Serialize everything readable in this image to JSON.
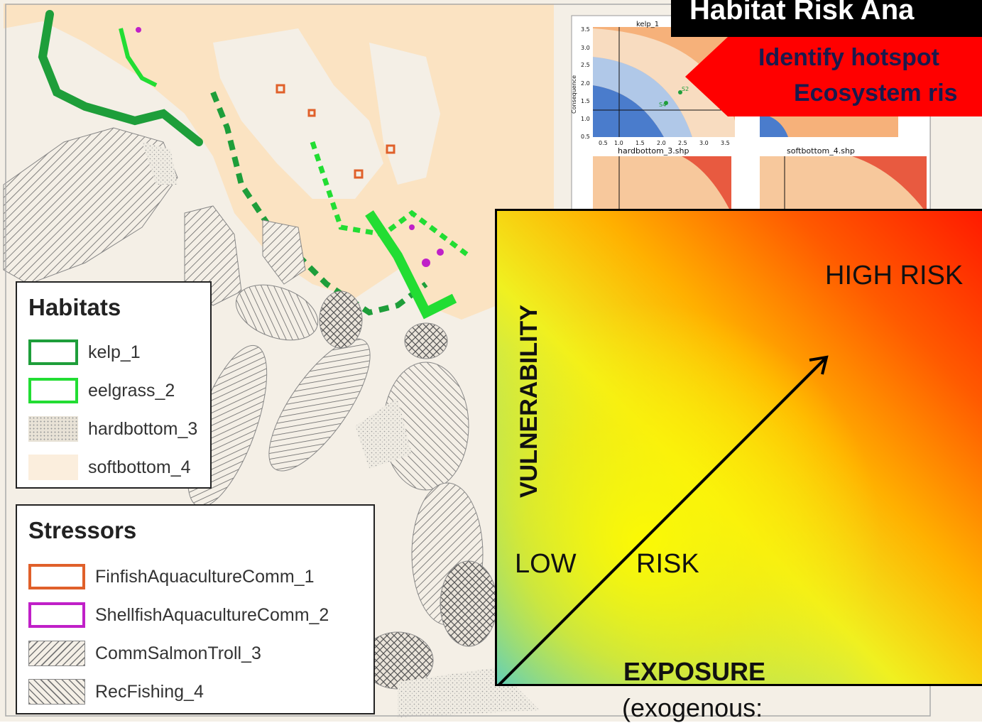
{
  "title_banner": {
    "text": "Habitat Risk Ana"
  },
  "subtitle_banner": {
    "line1": "Identify hotspot",
    "line2": "Ecosystem ris"
  },
  "habitats_legend": {
    "title": "Habitats",
    "items": [
      {
        "label": "kelp_1",
        "color": "#1e9e3a",
        "fill": "none"
      },
      {
        "label": "eelgrass_2",
        "color": "#22dd33",
        "fill": "none"
      },
      {
        "label": "hardbottom_3",
        "color": "#e8e2d6",
        "fill": "stipple"
      },
      {
        "label": "softbottom_4",
        "color": "#fbeedd",
        "fill": "solid"
      }
    ]
  },
  "stressors_legend": {
    "title": "Stressors",
    "items": [
      {
        "label": "FinfishAquacultureComm_1",
        "color": "#e0602a",
        "fill": "none"
      },
      {
        "label": "ShellfishAquacultureComm_2",
        "color": "#c020c8",
        "fill": "none"
      },
      {
        "label": "CommSalmonTroll_3",
        "color": "#777777",
        "fill": "diagonal"
      },
      {
        "label": "RecFishing_4",
        "color": "#777777",
        "fill": "cross"
      }
    ]
  },
  "mini_plots": {
    "plot_titles": [
      "kelp_1",
      "hardbottom_3.shp",
      "softbottom_4.shp"
    ],
    "y_ticks": [
      "3.5",
      "3.0",
      "2.5",
      "2.0",
      "1.5",
      "1.0",
      "0.5"
    ],
    "x_ticks": [
      "0.5",
      "1.0",
      "1.5",
      "2.0",
      "2.5",
      "3.0",
      "3.5"
    ],
    "y_label": "Consequence",
    "point_labels": [
      "S4",
      "S2"
    ]
  },
  "risk_diagram": {
    "y_label": "VULNERABILITY",
    "x_label": "EXPOSURE",
    "x_sublabel": "(exogenous:",
    "high_label": "HIGH RISK",
    "low_label": "LOW",
    "risk_label": "RISK"
  }
}
